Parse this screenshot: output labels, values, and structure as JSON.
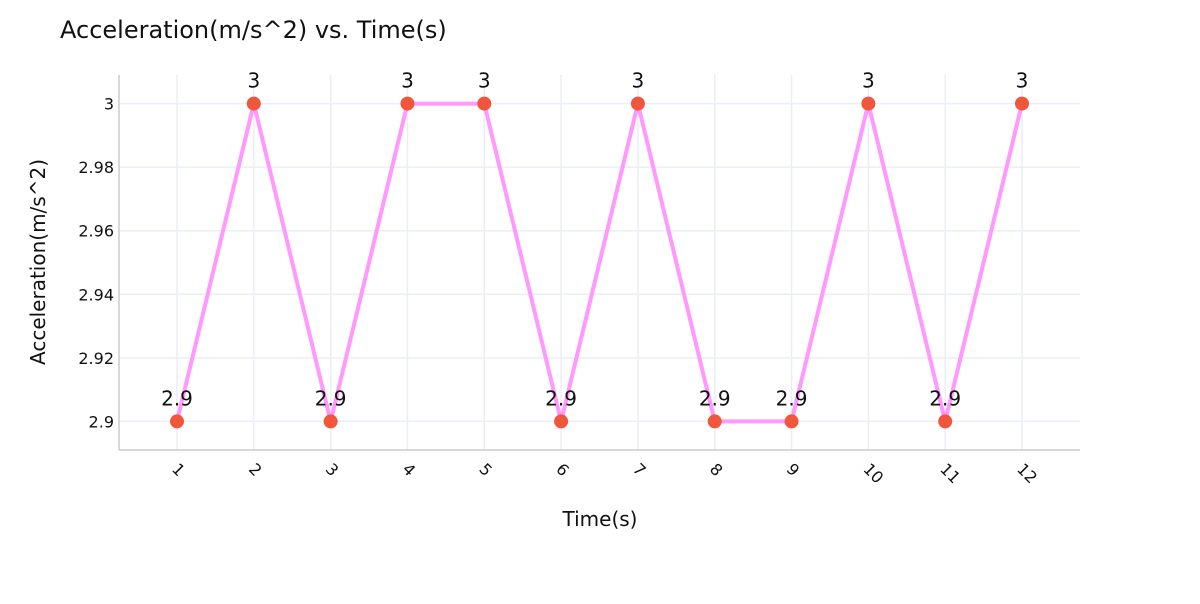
{
  "chart_data": {
    "type": "line",
    "title": "Acceleration(m/s^2) vs. Time(s)",
    "xlabel": "Time(s)",
    "ylabel": "Acceleration(m/s^2)",
    "categories": [
      "1",
      "2",
      "3",
      "4",
      "5",
      "6",
      "7",
      "8",
      "9",
      "10",
      "11",
      "12"
    ],
    "x": [
      1,
      2,
      3,
      4,
      5,
      6,
      7,
      8,
      9,
      10,
      11,
      12
    ],
    "values": [
      2.9,
      3,
      2.9,
      3,
      3,
      2.9,
      3,
      2.9,
      2.9,
      3,
      2.9,
      3
    ],
    "data_labels": [
      "2.9",
      "3",
      "2.9",
      "3",
      "3",
      "2.9",
      "3",
      "2.9",
      "2.9",
      "3",
      "2.9",
      "3"
    ],
    "yticks": [
      2.9,
      2.92,
      2.94,
      2.96,
      2.98,
      3
    ],
    "ytick_labels": [
      "2.9",
      "2.92",
      "2.94",
      "2.96",
      "2.98",
      "3"
    ],
    "ylim": [
      2.891,
      3.009
    ],
    "grid": true,
    "line_color": "#ff99ff",
    "marker_color": "#f0563c",
    "grid_color": "#ebeef7"
  }
}
